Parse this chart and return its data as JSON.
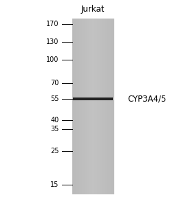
{
  "title": "Jurkat",
  "band_label": "CYP3A4/5",
  "mw_markers": [
    170,
    130,
    100,
    70,
    55,
    40,
    35,
    25,
    15
  ],
  "band_mw": 55,
  "background_color": "#ffffff",
  "lane_color": "#b8b8b8",
  "band_color": "#222222",
  "title_fontsize": 8.5,
  "marker_fontsize": 7,
  "band_label_fontsize": 8.5,
  "fig_width": 2.76,
  "fig_height": 3.0,
  "dpi": 100
}
